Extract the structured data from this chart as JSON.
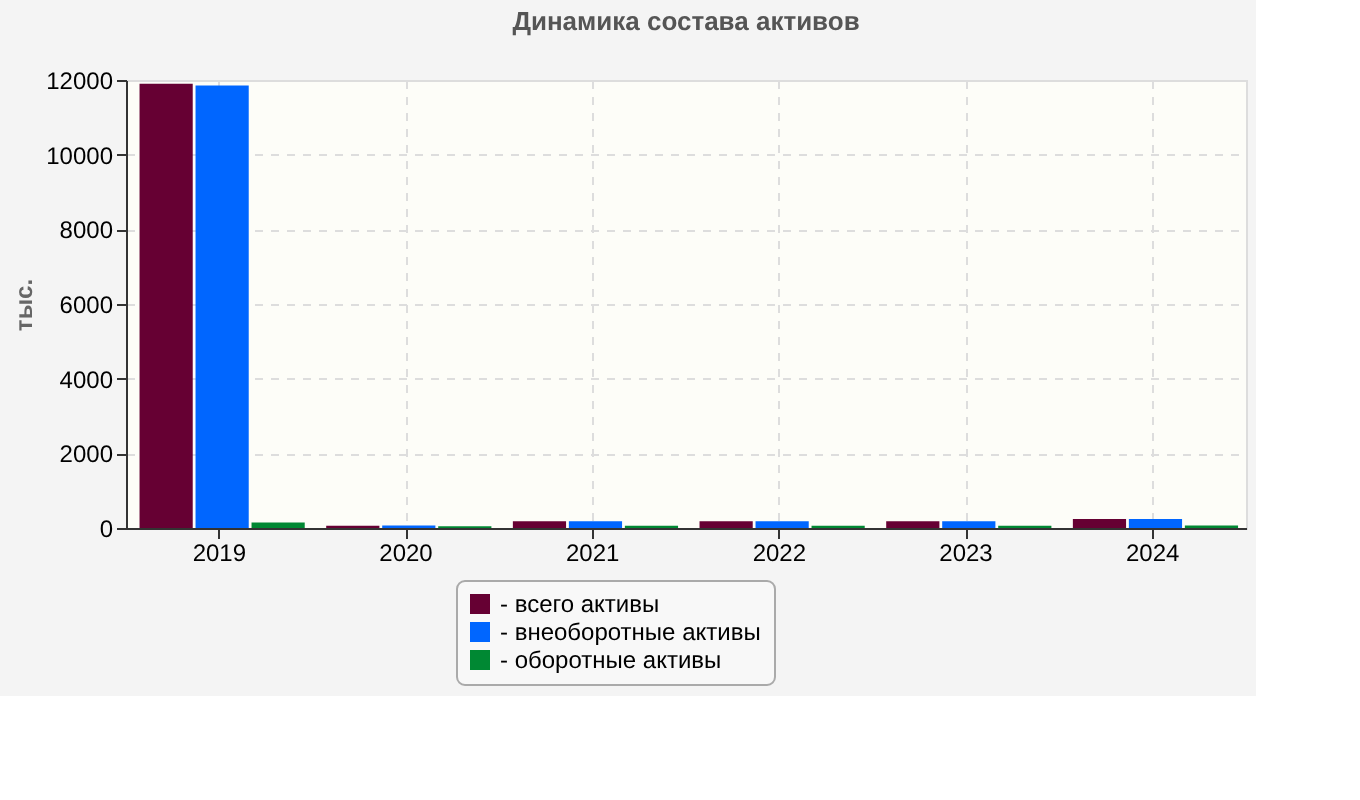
{
  "chart_data": {
    "type": "bar",
    "title": "Динамика состава активов",
    "ylabel": "тыс.",
    "categories": [
      "2019",
      "2020",
      "2021",
      "2022",
      "2023",
      "2024"
    ],
    "series": [
      {
        "name": "- всего активы",
        "color": "#660033",
        "values": [
          11900,
          60,
          180,
          180,
          180,
          240
        ]
      },
      {
        "name": "- внеоборотные активы",
        "color": "#0066ff",
        "values": [
          11850,
          70,
          180,
          180,
          180,
          240
        ]
      },
      {
        "name": "- оборотные активы",
        "color": "#008833",
        "values": [
          150,
          50,
          60,
          60,
          60,
          70
        ]
      }
    ],
    "ylim": [
      0,
      12000
    ],
    "yticks": [
      0,
      2000,
      4000,
      6000,
      8000,
      10000,
      12000
    ],
    "grid": true,
    "legend": "bottom"
  }
}
